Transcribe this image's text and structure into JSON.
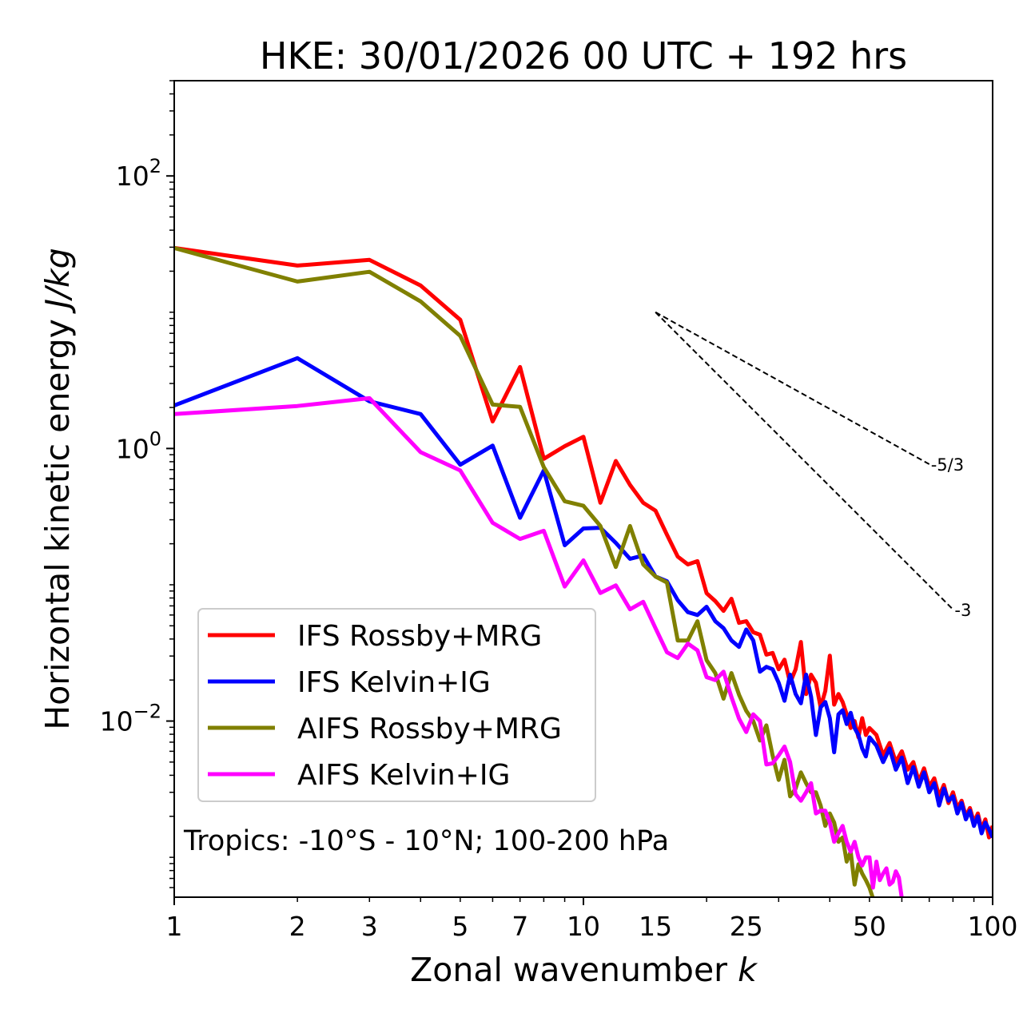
{
  "chart_data": {
    "type": "line",
    "title": "HKE: 30/01/2026 00 UTC + 192 hrs",
    "xlabel": "Zonal wavenumber",
    "xlabel_symbol": "k",
    "ylabel": "Horizontal kinetic energy",
    "ylabel_units": "J/kg",
    "xscale": "log",
    "yscale": "log",
    "xlim": [
      1,
      100
    ],
    "ylim": [
      0.00051,
      500
    ],
    "x_ticks": [
      1,
      2,
      3,
      5,
      7,
      10,
      15,
      25,
      50,
      100
    ],
    "x_tick_labels": [
      "1",
      "2",
      "3",
      "5",
      "7",
      "10",
      "15",
      "25",
      "50",
      "100"
    ],
    "y_ticks": [
      100,
      1,
      0.01
    ],
    "y_tick_labels": [
      "10^2",
      "10^0",
      "10^-2"
    ],
    "grid": false,
    "legend_position": "lower-left",
    "annotation": "Tropics: -10°S - 10°N; 100-200 hPa",
    "reference_slopes": [
      {
        "label": "-5/3",
        "slope": -1.6667,
        "k_start": 15,
        "k_end": 70,
        "y_start": 10
      },
      {
        "label": "-3",
        "slope": -3,
        "k_start": 15,
        "k_end": 80,
        "y_start": 10
      }
    ],
    "series": [
      {
        "name": "IFS Rossby+MRG",
        "color": "#ff0000",
        "points": [
          [
            1,
            29.6
          ],
          [
            2,
            22.0
          ],
          [
            3,
            24.2
          ],
          [
            4,
            15.7
          ],
          [
            5,
            8.8
          ],
          [
            6,
            1.58
          ],
          [
            7,
            3.96
          ],
          [
            8,
            0.84
          ],
          [
            9,
            1.04
          ],
          [
            10,
            1.22
          ],
          [
            11,
            0.4
          ],
          [
            12,
            0.81
          ],
          [
            13,
            0.54
          ],
          [
            14,
            0.4
          ],
          [
            15,
            0.35
          ],
          [
            16,
            0.233
          ],
          [
            17,
            0.161
          ],
          [
            18,
            0.141
          ],
          [
            19,
            0.149
          ],
          [
            20,
            0.0867
          ],
          [
            21,
            0.0759
          ],
          [
            22,
            0.0644
          ],
          [
            23,
            0.0789
          ],
          [
            24,
            0.0526
          ],
          [
            25,
            0.0541
          ],
          [
            26,
            0.0448
          ],
          [
            27,
            0.043
          ],
          [
            28,
            0.0307
          ],
          [
            29,
            0.0316
          ],
          [
            30,
            0.024
          ],
          [
            31,
            0.0282
          ],
          [
            32,
            0.0191
          ],
          [
            33,
            0.024
          ],
          [
            34,
            0.038
          ],
          [
            35,
            0.0158
          ],
          [
            36,
            0.0219
          ],
          [
            37,
            0.0191
          ],
          [
            38,
            0.0126
          ],
          [
            39,
            0.0166
          ],
          [
            40,
            0.0302
          ],
          [
            41,
            0.0132
          ],
          [
            42,
            0.0158
          ],
          [
            43,
            0.0138
          ],
          [
            44,
            0.0112
          ],
          [
            45,
            0.0089
          ],
          [
            46,
            0.01
          ],
          [
            47,
            0.0076
          ],
          [
            48,
            0.0105
          ],
          [
            49,
            0.0079
          ],
          [
            50,
            0.0089
          ],
          [
            52,
            0.0079
          ],
          [
            54,
            0.0056
          ],
          [
            56,
            0.0069
          ],
          [
            58,
            0.005
          ],
          [
            60,
            0.006
          ],
          [
            62,
            0.0044
          ],
          [
            64,
            0.005
          ],
          [
            66,
            0.0036
          ],
          [
            68,
            0.0045
          ],
          [
            70,
            0.0033
          ],
          [
            72,
            0.0038
          ],
          [
            74,
            0.0028
          ],
          [
            76,
            0.0034
          ],
          [
            78,
            0.0025
          ],
          [
            80,
            0.003
          ],
          [
            82,
            0.0023
          ],
          [
            84,
            0.0026
          ],
          [
            86,
            0.002
          ],
          [
            88,
            0.0023
          ],
          [
            90,
            0.0018
          ],
          [
            92,
            0.0021
          ],
          [
            94,
            0.0016
          ],
          [
            96,
            0.0019
          ],
          [
            98,
            0.0014
          ],
          [
            100,
            0.0017
          ]
        ]
      },
      {
        "name": "IFS Kelvin+IG",
        "color": "#0000ff",
        "points": [
          [
            1,
            2.07
          ],
          [
            2,
            4.6
          ],
          [
            3,
            2.22
          ],
          [
            4,
            1.79
          ],
          [
            5,
            0.76
          ],
          [
            6,
            1.05
          ],
          [
            7,
            0.31
          ],
          [
            8,
            0.69
          ],
          [
            9,
            0.195
          ],
          [
            10,
            0.259
          ],
          [
            11,
            0.262
          ],
          [
            12,
            0.203
          ],
          [
            13,
            0.155
          ],
          [
            14,
            0.164
          ],
          [
            15,
            0.115
          ],
          [
            16,
            0.106
          ],
          [
            17,
            0.077
          ],
          [
            18,
            0.063
          ],
          [
            19,
            0.06
          ],
          [
            20,
            0.069
          ],
          [
            21,
            0.054
          ],
          [
            22,
            0.048
          ],
          [
            23,
            0.039
          ],
          [
            24,
            0.035
          ],
          [
            25,
            0.047
          ],
          [
            26,
            0.039
          ],
          [
            27,
            0.023
          ],
          [
            28,
            0.025
          ],
          [
            29,
            0.024
          ],
          [
            30,
            0.0191
          ],
          [
            31,
            0.0141
          ],
          [
            32,
            0.0219
          ],
          [
            33,
            0.0158
          ],
          [
            34,
            0.0135
          ],
          [
            35,
            0.0219
          ],
          [
            36,
            0.0151
          ],
          [
            37,
            0.0079
          ],
          [
            38,
            0.0126
          ],
          [
            39,
            0.0138
          ],
          [
            40,
            0.0105
          ],
          [
            41,
            0.0059
          ],
          [
            42,
            0.0112
          ],
          [
            43,
            0.012
          ],
          [
            44,
            0.0095
          ],
          [
            45,
            0.0115
          ],
          [
            46,
            0.0089
          ],
          [
            47,
            0.0079
          ],
          [
            48,
            0.0063
          ],
          [
            49,
            0.0055
          ],
          [
            50,
            0.0076
          ],
          [
            52,
            0.0066
          ],
          [
            54,
            0.005
          ],
          [
            56,
            0.0063
          ],
          [
            58,
            0.0044
          ],
          [
            60,
            0.0054
          ],
          [
            62,
            0.0035
          ],
          [
            64,
            0.0046
          ],
          [
            66,
            0.0033
          ],
          [
            68,
            0.0042
          ],
          [
            70,
            0.003
          ],
          [
            72,
            0.0035
          ],
          [
            74,
            0.0024
          ],
          [
            76,
            0.0032
          ],
          [
            78,
            0.0026
          ],
          [
            80,
            0.0028
          ],
          [
            82,
            0.0021
          ],
          [
            84,
            0.0025
          ],
          [
            86,
            0.0019
          ],
          [
            88,
            0.0022
          ],
          [
            90,
            0.0017
          ],
          [
            92,
            0.002
          ],
          [
            94,
            0.0015
          ],
          [
            96,
            0.0018
          ],
          [
            98,
            0.0016
          ],
          [
            100,
            0.0014
          ]
        ]
      },
      {
        "name": "AIFS Rossby+MRG",
        "color": "#808000",
        "points": [
          [
            1,
            29.6
          ],
          [
            2,
            16.8
          ],
          [
            3,
            19.8
          ],
          [
            4,
            12.0
          ],
          [
            5,
            6.7
          ],
          [
            6,
            2.1
          ],
          [
            7,
            2.02
          ],
          [
            8,
            0.73
          ],
          [
            9,
            0.41
          ],
          [
            10,
            0.38
          ],
          [
            11,
            0.27
          ],
          [
            12,
            0.135
          ],
          [
            13,
            0.27
          ],
          [
            14,
            0.141
          ],
          [
            15,
            0.115
          ],
          [
            16,
            0.104
          ],
          [
            17,
            0.039
          ],
          [
            18,
            0.039
          ],
          [
            19,
            0.054
          ],
          [
            20,
            0.028
          ],
          [
            21,
            0.0225
          ],
          [
            22,
            0.0146
          ],
          [
            23,
            0.0225
          ],
          [
            24,
            0.0156
          ],
          [
            25,
            0.0119
          ],
          [
            26,
            0.01
          ],
          [
            27,
            0.0072
          ],
          [
            28,
            0.0093
          ],
          [
            29,
            0.0056
          ],
          [
            30,
            0.0037
          ],
          [
            31,
            0.0052
          ],
          [
            32,
            0.0028
          ],
          [
            33,
            0.0032
          ],
          [
            34,
            0.0042
          ],
          [
            35,
            0.0035
          ],
          [
            36,
            0.003
          ],
          [
            37,
            0.003
          ],
          [
            38,
            0.0024
          ],
          [
            39,
            0.0017
          ],
          [
            40,
            0.0021
          ],
          [
            41,
            0.0018
          ],
          [
            42,
            0.0013
          ],
          [
            43,
            0.0014
          ],
          [
            44,
            0.00093
          ],
          [
            45,
            0.0011
          ],
          [
            46,
            0.00063
          ],
          [
            47,
            0.00089
          ],
          [
            48,
            0.00076
          ],
          [
            49,
            0.00068
          ],
          [
            50,
            0.0006
          ],
          [
            51,
            0.0005
          ]
        ]
      },
      {
        "name": "AIFS Kelvin+IG",
        "color": "#ff00ff",
        "points": [
          [
            1,
            1.79
          ],
          [
            2,
            2.05
          ],
          [
            3,
            2.34
          ],
          [
            4,
            0.94
          ],
          [
            5,
            0.69
          ],
          [
            6,
            0.285
          ],
          [
            7,
            0.217
          ],
          [
            8,
            0.249
          ],
          [
            9,
            0.097
          ],
          [
            10,
            0.151
          ],
          [
            11,
            0.087
          ],
          [
            12,
            0.099
          ],
          [
            13,
            0.066
          ],
          [
            14,
            0.075
          ],
          [
            15,
            0.048
          ],
          [
            16,
            0.032
          ],
          [
            17,
            0.029
          ],
          [
            18,
            0.037
          ],
          [
            19,
            0.033
          ],
          [
            20,
            0.021
          ],
          [
            21,
            0.02
          ],
          [
            22,
            0.023
          ],
          [
            23,
            0.015
          ],
          [
            24,
            0.0104
          ],
          [
            25,
            0.0083
          ],
          [
            26,
            0.0112
          ],
          [
            27,
            0.01
          ],
          [
            28,
            0.0048
          ],
          [
            29,
            0.0049
          ],
          [
            30,
            0.0056
          ],
          [
            31,
            0.0065
          ],
          [
            32,
            0.005
          ],
          [
            33,
            0.0029
          ],
          [
            34,
            0.0026
          ],
          [
            35,
            0.003
          ],
          [
            36,
            0.0035
          ],
          [
            37,
            0.0021
          ],
          [
            38,
            0.0022
          ],
          [
            39,
            0.0022
          ],
          [
            40,
            0.0018
          ],
          [
            41,
            0.0013
          ],
          [
            42,
            0.0015
          ],
          [
            43,
            0.0017
          ],
          [
            44,
            0.0013
          ],
          [
            45,
            0.0011
          ],
          [
            46,
            0.0013
          ],
          [
            47,
            0.001
          ],
          [
            48,
            0.00087
          ],
          [
            49,
            0.001
          ],
          [
            50,
            0.001
          ],
          [
            51,
            0.0006
          ],
          [
            52,
            0.00093
          ],
          [
            53,
            0.00068
          ],
          [
            54,
            0.00076
          ],
          [
            55,
            0.00083
          ],
          [
            56,
            0.00063
          ],
          [
            57,
            0.00066
          ],
          [
            58,
            0.00079
          ],
          [
            59,
            0.00071
          ],
          [
            60,
            0.0005
          ]
        ]
      }
    ]
  }
}
